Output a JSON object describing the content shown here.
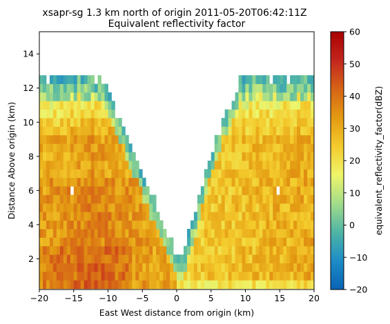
{
  "chart_data": {
    "type": "heatmap",
    "title": "xsapr-sg 1.3 km north of origin 2011-05-20T06:42:11Z",
    "subtitle": "Equivalent reflectivity factor",
    "xlabel": "East West distance from origin (km)",
    "ylabel": "Distance Above origin (km)",
    "xlim": [
      -20,
      20
    ],
    "ylim": [
      0.2,
      15.3
    ],
    "x_ticks": [
      -20,
      -15,
      -10,
      -5,
      0,
      5,
      10,
      15,
      20
    ],
    "y_ticks": [
      2,
      4,
      6,
      8,
      10,
      12,
      14
    ],
    "colorbar": {
      "label": "equivalent_reflectivity_factor(dBZ)",
      "range": [
        -20,
        60
      ],
      "ticks": [
        -20,
        -10,
        0,
        10,
        20,
        30,
        40,
        50,
        60
      ],
      "colors": [
        "#0a63b5",
        "#1c8cc6",
        "#4fb5a6",
        "#a3dc8a",
        "#eef56a",
        "#f4cb2c",
        "#e39a12",
        "#d66417",
        "#c3261e",
        "#a80000"
      ]
    },
    "cell_x_km": 0.5,
    "cell_y_km": 0.5,
    "y_bottom_km": 0.25,
    "echo_profile": {
      "description": "approximate column profile: top height (km) per column, reflectivity field rendered from data rules",
      "left_edge_x": -20,
      "right_edge_x": 20
    }
  }
}
